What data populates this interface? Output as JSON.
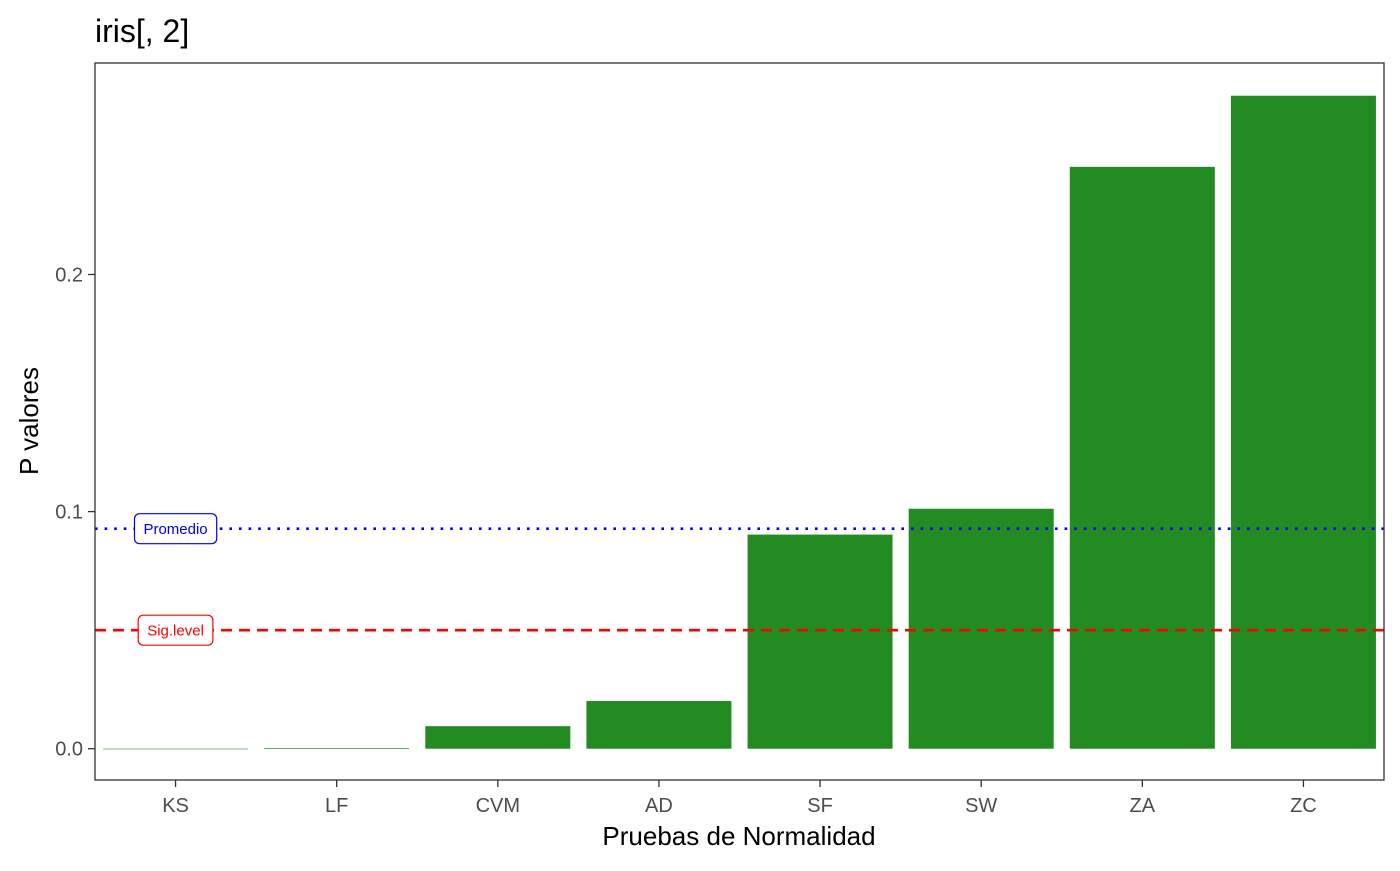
{
  "chart_data": {
    "type": "bar",
    "title": "iris[, 2]",
    "xlabel": "Pruebas de Normalidad",
    "ylabel": "P valores",
    "categories": [
      "KS",
      "LF",
      "CVM",
      "AD",
      "SF",
      "SW",
      "ZA",
      "ZC"
    ],
    "values": [
      0.0,
      0.0003,
      0.0095,
      0.0201,
      0.0903,
      0.1012,
      0.2454,
      0.2754
    ],
    "ylim": [
      -0.0132,
      0.2892
    ],
    "yticks": [
      0.0,
      0.1,
      0.2
    ],
    "ytick_labels": [
      "0.0",
      "0.1",
      "0.2"
    ],
    "grid": false,
    "bar_color": "#228B22",
    "reference_lines": [
      {
        "label": "Promedio",
        "value": 0.0928,
        "color": "#0000FF",
        "style": "dotted"
      },
      {
        "label": "Sig.level",
        "value": 0.05,
        "color": "#FF0000",
        "style": "dashed"
      }
    ]
  }
}
